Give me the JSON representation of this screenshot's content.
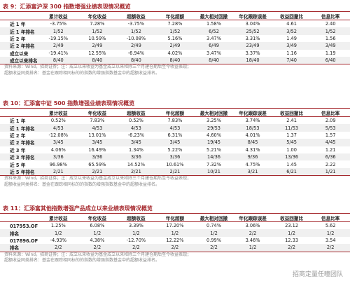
{
  "tables": [
    {
      "title": "表 9：汇添富沪深 300 指数增强业绩表现情况概览",
      "headers": [
        "累计收益",
        "年化收益",
        "超额收益",
        "年化超额",
        "最大相对回撤",
        "年化跟踪误差",
        "收益回撤比",
        "信息比率"
      ],
      "rows": [
        [
          "近 1 年",
          "-3.75%",
          "7.28%",
          "-3.75%",
          "7.28%",
          "1.58%",
          "3.04%",
          "4.61",
          "2.40"
        ],
        [
          "近 1 年排名",
          "1/52",
          "1/52",
          "1/52",
          "1/52",
          "6/52",
          "25/52",
          "3/52",
          "1/52"
        ],
        [
          "近 2 年",
          "-19.15%",
          "10.59%",
          "-10.08%",
          "5.16%",
          "3.47%",
          "3.31%",
          "1.49",
          "1.56"
        ],
        [
          "近 2 年排名",
          "2/49",
          "2/49",
          "2/49",
          "2/49",
          "6/49",
          "23/49",
          "3/49",
          "3/49"
        ],
        [
          "成立以来",
          "-19.41%",
          "12.55%",
          "-6.94%",
          "4.02%",
          "3.47%",
          "3.37%",
          "1.16",
          "1.19"
        ],
        [
          "成立以来排名",
          "8/40",
          "8/40",
          "8/40",
          "8/40",
          "8/40",
          "18/40",
          "7/40",
          "6/40"
        ]
      ],
      "notes": [
        "资料来源：Wind，招商证券；注：成立以来收益为基金成立以来和除三个月建仓期后至今收益表现；",
        "超额收益同类排名：基金在跟踪相同标的的指数的增强指数基金中的超额收益排名。"
      ]
    },
    {
      "title": "表 10：汇添富中证 500 指数增强业绩表现情况概览",
      "headers": [
        "累计收益",
        "年化收益",
        "超额收益",
        "年化超额",
        "最大相对回撤",
        "年化跟踪误差",
        "收益回撤比",
        "信息比率"
      ],
      "rows": [
        [
          "近 1 年",
          "0.52%",
          "7.83%",
          "0.52%",
          "7.83%",
          "3.25%",
          "3.74%",
          "2.41",
          "2.09"
        ],
        [
          "近 1 年排名",
          "4/53",
          "4/53",
          "4/53",
          "4/53",
          "29/53",
          "18/53",
          "11/53",
          "5/53"
        ],
        [
          "近 2 年",
          "-12.08%",
          "13.01%",
          "-6.23%",
          "6.31%",
          "4.60%",
          "4.01%",
          "1.37",
          "1.57"
        ],
        [
          "近 2 年排名",
          "3/45",
          "3/45",
          "3/45",
          "3/45",
          "19/45",
          "8/45",
          "5/45",
          "4/45"
        ],
        [
          "近 3 年",
          "4.06%",
          "16.49%",
          "1.34%",
          "5.22%",
          "5.21%",
          "4.31%",
          "1.00",
          "1.21"
        ],
        [
          "近 3 年排名",
          "3/36",
          "3/36",
          "3/36",
          "3/36",
          "14/36",
          "9/36",
          "13/36",
          "6/36"
        ],
        [
          "近 5 年",
          "96.98%",
          "65.59%",
          "14.52%",
          "10.61%",
          "7.32%",
          "4.75%",
          "1.45",
          "2.22"
        ],
        [
          "近 5 年排名",
          "2/21",
          "2/21",
          "2/21",
          "2/21",
          "10/21",
          "3/21",
          "6/21",
          "1/21"
        ]
      ],
      "notes": [
        "资料来源：Wind，招商证券；注：成立以来收益为基金成立以来和除三个月建仓期后至今收益表现；",
        "超额收益同类排名：基金在跟踪相同标的的指数的增强指数基金中的超额收益排名。"
      ]
    },
    {
      "title": "表 11：汇添富其他指数增强产品成立以来业绩表现情况概览",
      "headers": [
        "累计收益",
        "年化收益",
        "超额收益",
        "年化超额",
        "最大相对回撤",
        "年化跟踪误差",
        "收益回撤比",
        "信息比率"
      ],
      "rows": [
        [
          "017953.OF 收益",
          "1.25%",
          "6.08%",
          "3.39%",
          "17.20%",
          "0.74%",
          "3.06%",
          "23.12",
          "5.62"
        ],
        [
          "排名",
          "1/2",
          "1/2",
          "1/2",
          "1/2",
          "1/2",
          "2/2",
          "1/2",
          "1/2"
        ],
        [
          "017896.OF 收益",
          "-4.93%",
          "4.38%",
          "-12.70%",
          "12.22%",
          "0.99%",
          "3.46%",
          "12.33",
          "3.54"
        ],
        [
          "排名",
          "2/2",
          "2/2",
          "2/2",
          "2/2",
          "2/2",
          "1/2",
          "2/2",
          "2/2"
        ]
      ],
      "notes": [
        "资料来源：Wind，招商证券；注：成立以来收益为基金成立以来和除三个月建仓期后至今收益表现；",
        "超额收益同类排名：基金在跟踪相同标的的指数的增强指数基金中的超额收益排名。"
      ]
    }
  ],
  "watermark": "招商定量任瞳团队"
}
